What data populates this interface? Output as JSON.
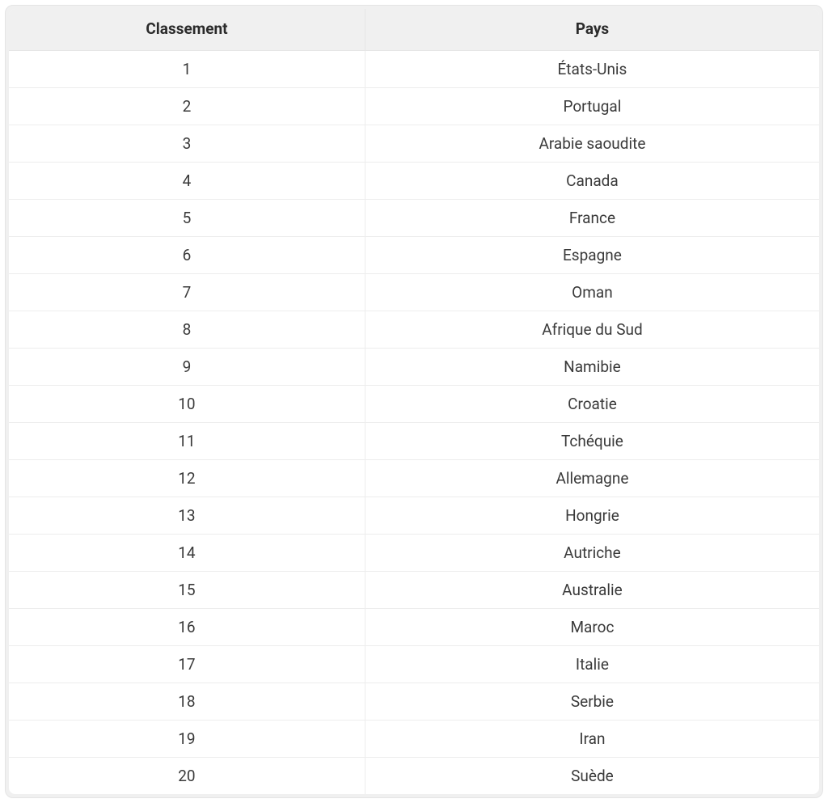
{
  "table": {
    "columns": [
      "Classement",
      "Pays"
    ],
    "header_bg": "#f0f0f0",
    "header_fontsize": 19,
    "header_fontweight": 700,
    "header_color": "#2b2b2b",
    "cell_fontsize": 19,
    "cell_color": "#3a3a3a",
    "border_color": "#ededed",
    "outer_border_color": "#e5e5e5",
    "background_color": "#ffffff",
    "wrapper_bg": "#f0f0f0",
    "col_widths_pct": [
      44,
      56
    ],
    "rows": [
      [
        "1",
        "États-Unis"
      ],
      [
        "2",
        "Portugal"
      ],
      [
        "3",
        "Arabie saoudite"
      ],
      [
        "4",
        "Canada"
      ],
      [
        "5",
        "France"
      ],
      [
        "6",
        "Espagne"
      ],
      [
        "7",
        "Oman"
      ],
      [
        "8",
        "Afrique du Sud"
      ],
      [
        "9",
        "Namibie"
      ],
      [
        "10",
        "Croatie"
      ],
      [
        "11",
        "Tchéquie"
      ],
      [
        "12",
        "Allemagne"
      ],
      [
        "13",
        "Hongrie"
      ],
      [
        "14",
        "Autriche"
      ],
      [
        "15",
        "Australie"
      ],
      [
        "16",
        "Maroc"
      ],
      [
        "17",
        "Italie"
      ],
      [
        "18",
        "Serbie"
      ],
      [
        "19",
        "Iran"
      ],
      [
        "20",
        "Suède"
      ]
    ]
  }
}
